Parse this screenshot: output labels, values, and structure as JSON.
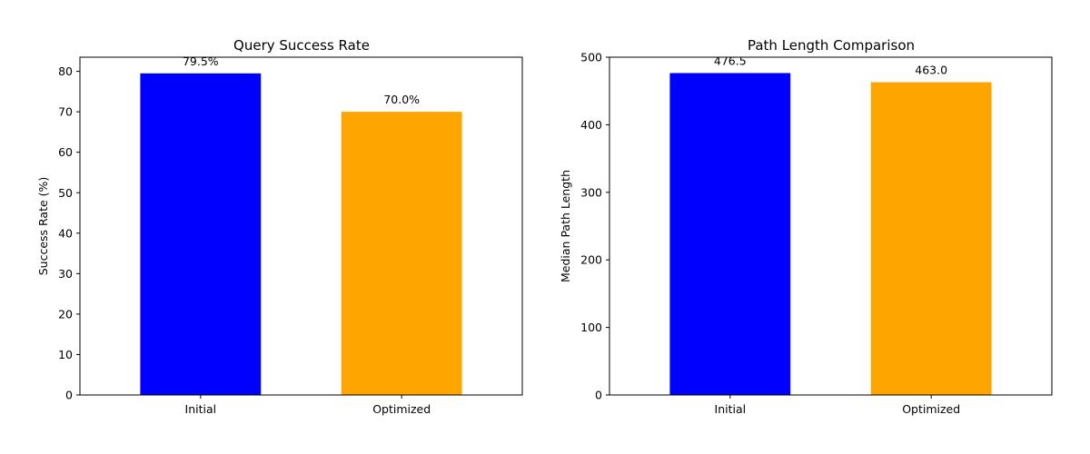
{
  "chart_data": [
    {
      "type": "bar",
      "title": "Query Success Rate",
      "xlabel": "",
      "ylabel": "Success Rate (%)",
      "categories": [
        "Initial",
        "Optimized"
      ],
      "values": [
        79.5,
        70.0
      ],
      "value_labels": [
        "79.5%",
        "70.0%"
      ],
      "colors": [
        "#0000ff",
        "#ffa500"
      ],
      "ylim": [
        0,
        83.5
      ],
      "yticks": [
        0,
        10,
        20,
        30,
        40,
        50,
        60,
        70,
        80
      ],
      "ytick_labels": [
        "0",
        "10",
        "20",
        "30",
        "40",
        "50",
        "60",
        "70",
        "80"
      ],
      "grid": false,
      "legend": "none"
    },
    {
      "type": "bar",
      "title": "Path Length Comparison",
      "xlabel": "",
      "ylabel": "Median Path Length",
      "categories": [
        "Initial",
        "Optimized"
      ],
      "values": [
        476.5,
        463.0
      ],
      "value_labels": [
        "476.5",
        "463.0"
      ],
      "colors": [
        "#0000ff",
        "#ffa500"
      ],
      "ylim": [
        0,
        500
      ],
      "yticks": [
        0,
        100,
        200,
        300,
        400,
        500
      ],
      "ytick_labels": [
        "0",
        "100",
        "200",
        "300",
        "400",
        "500"
      ],
      "grid": false,
      "legend": "none"
    }
  ]
}
